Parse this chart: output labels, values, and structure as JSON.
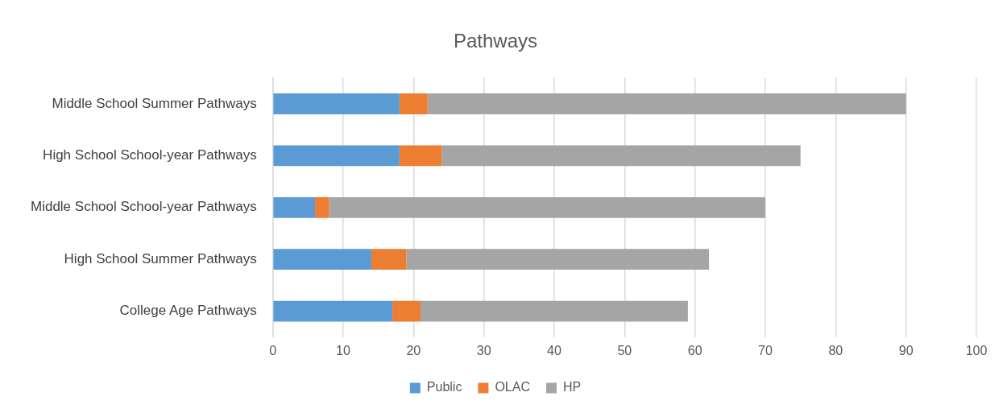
{
  "chart_data": {
    "type": "bar",
    "title": "Pathways",
    "orientation": "horizontal",
    "stacked": true,
    "categories": [
      "Middle School Summer Pathways",
      "High School School-year Pathways",
      "Middle School School-year Pathways",
      "High School Summer Pathways",
      "College Age Pathways"
    ],
    "series": [
      {
        "name": "Public",
        "color": "#5b9bd5",
        "values": [
          18,
          18,
          6,
          14,
          17
        ]
      },
      {
        "name": "OLAC",
        "color": "#ed7d31",
        "values": [
          4,
          6,
          2,
          5,
          4
        ]
      },
      {
        "name": "HP",
        "color": "#a5a5a5",
        "values": [
          68,
          51,
          62,
          43,
          38
        ]
      }
    ],
    "xlim": [
      0,
      100
    ],
    "xticks": [
      0,
      10,
      20,
      30,
      40,
      50,
      60,
      70,
      80,
      90,
      100
    ],
    "grid": "x",
    "legend": "bottom"
  }
}
